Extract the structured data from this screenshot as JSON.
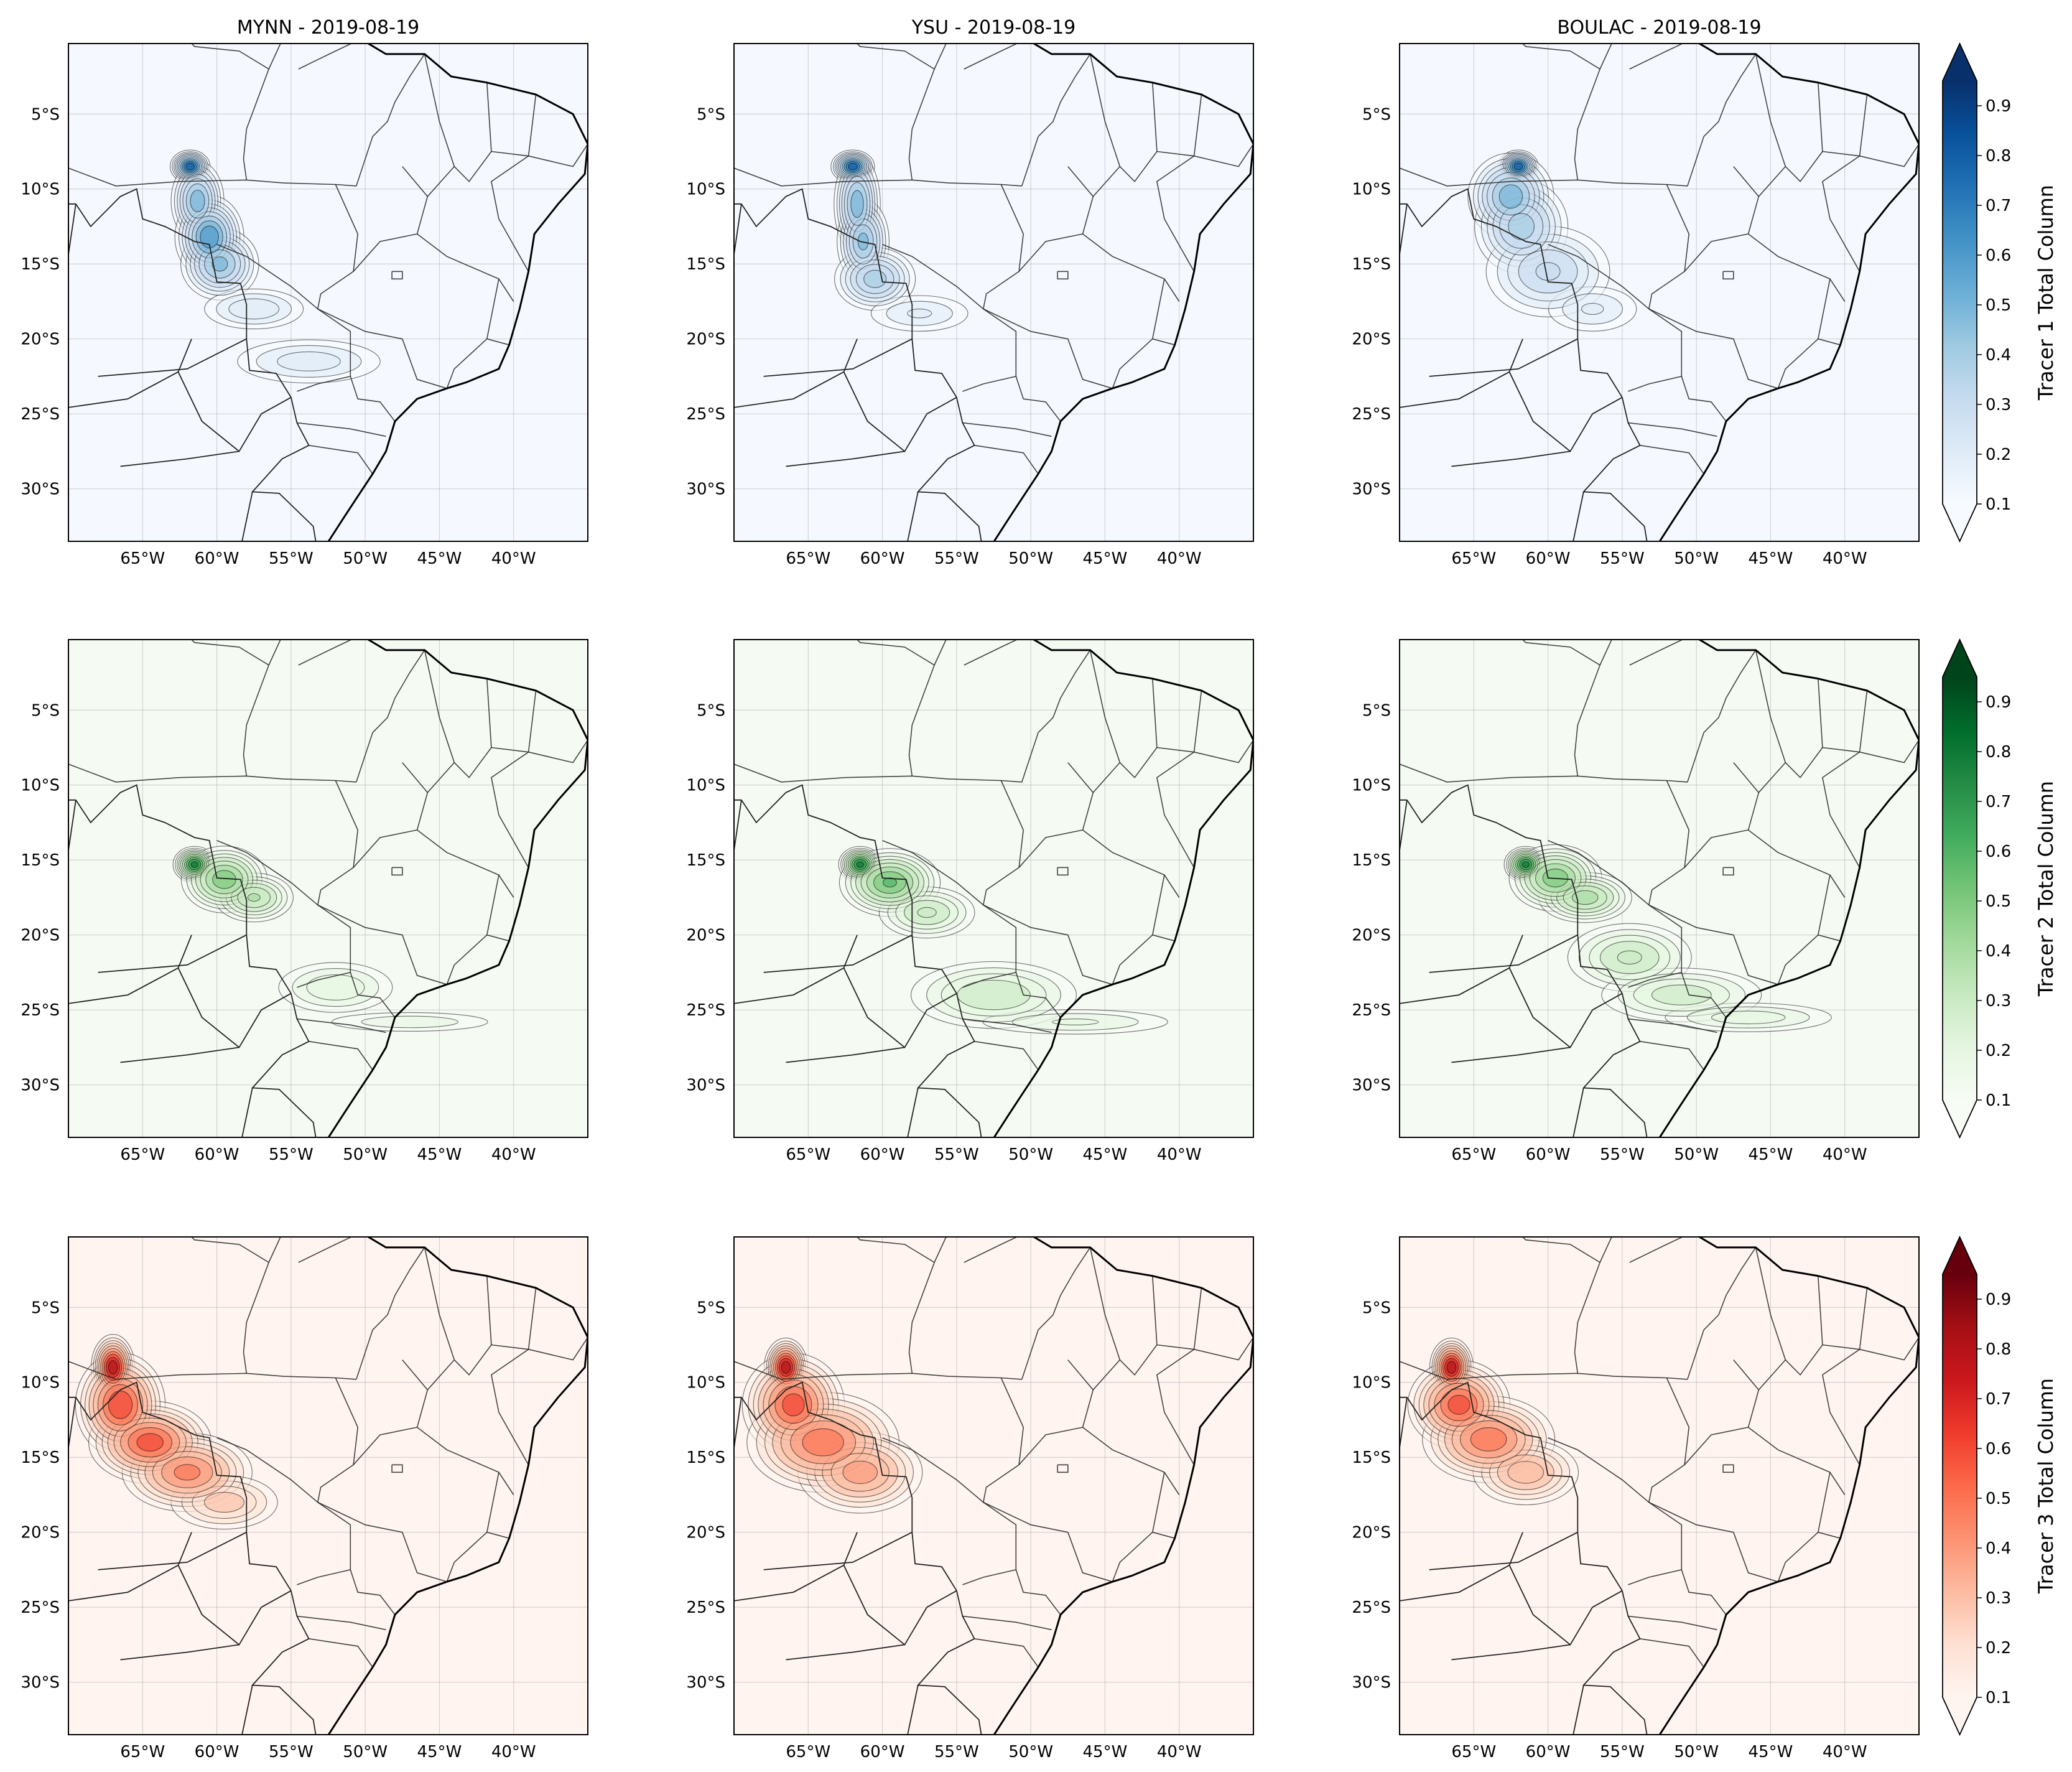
{
  "figure": {
    "columns": [
      "MYNN",
      "YSU",
      "BOULAC"
    ],
    "date": "2019-08-19",
    "title_separator": " - ",
    "panel_titles": [
      "MYNN - 2019-08-19",
      "YSU - 2019-08-19",
      "BOULAC - 2019-08-19"
    ]
  },
  "map_extent": {
    "lon": [
      -70,
      -35
    ],
    "lat": [
      -33.5,
      -0.3
    ]
  },
  "lon_ticks": [
    -65,
    -60,
    -55,
    -50,
    -45,
    -40
  ],
  "lon_tick_labels": [
    "65°W",
    "60°W",
    "55°W",
    "50°W",
    "45°W",
    "40°W"
  ],
  "lat_ticks": [
    -5,
    -10,
    -15,
    -20,
    -25,
    -30
  ],
  "lat_tick_labels": [
    "5°S",
    "10°S",
    "15°S",
    "20°S",
    "25°S",
    "30°S"
  ],
  "rows": [
    {
      "tracer": "Tracer 1",
      "colorbar_label": "Tracer 1 Total Column",
      "cmap": [
        "#f7fbff",
        "#deebf7",
        "#c6dbef",
        "#9ecae1",
        "#6baed6",
        "#4292c6",
        "#2171b5",
        "#08519c",
        "#08306b"
      ],
      "background": "#f5f9ff",
      "plumes": [
        {
          "model": "MYNN",
          "points": [
            [
              -61.8,
              -8.5,
              0.55,
              0.45,
              1.0
            ],
            [
              -61.3,
              -10.8,
              0.8,
              1.2,
              0.6
            ],
            [
              -60.5,
              -13.2,
              1.0,
              1.2,
              0.75
            ],
            [
              -59.8,
              -15.0,
              1.2,
              1.1,
              0.55
            ],
            [
              -57.5,
              -18.0,
              2.0,
              0.8,
              0.2
            ],
            [
              -53.8,
              -21.5,
              3.0,
              0.9,
              0.18
            ]
          ]
        },
        {
          "model": "YSU",
          "points": [
            [
              -62.0,
              -8.5,
              0.6,
              0.45,
              1.0
            ],
            [
              -61.7,
              -11.0,
              0.7,
              1.5,
              0.6
            ],
            [
              -61.3,
              -13.5,
              0.8,
              1.3,
              0.55
            ],
            [
              -60.5,
              -16.0,
              1.3,
              1.0,
              0.45
            ],
            [
              -57.5,
              -18.3,
              2.2,
              0.8,
              0.15
            ]
          ]
        },
        {
          "model": "BOULAC",
          "points": [
            [
              -62.0,
              -8.5,
              0.55,
              0.45,
              1.0
            ],
            [
              -62.5,
              -10.5,
              1.3,
              1.3,
              0.6
            ],
            [
              -61.8,
              -12.5,
              1.5,
              1.5,
              0.45
            ],
            [
              -60.0,
              -15.5,
              2.2,
              1.6,
              0.3
            ],
            [
              -57.0,
              -18.0,
              2.0,
              1.0,
              0.15
            ]
          ]
        }
      ]
    },
    {
      "tracer": "Tracer 2",
      "colorbar_label": "Tracer 2 Total Column",
      "cmap": [
        "#f7fcf5",
        "#e5f5e0",
        "#c7e9c0",
        "#a1d99b",
        "#74c476",
        "#41ab5d",
        "#238b45",
        "#006d2c",
        "#00441b"
      ],
      "background": "#f5fbf3",
      "plumes": [
        {
          "model": "MYNN",
          "points": [
            [
              -61.5,
              -15.3,
              0.6,
              0.5,
              0.95
            ],
            [
              -59.5,
              -16.3,
              1.3,
              1.0,
              0.6
            ],
            [
              -57.5,
              -17.5,
              1.3,
              0.8,
              0.4
            ],
            [
              -52.0,
              -23.5,
              2.3,
              1.0,
              0.2
            ],
            [
              -47.0,
              -25.8,
              3.8,
              0.45,
              0.13
            ]
          ]
        },
        {
          "model": "YSU",
          "points": [
            [
              -61.5,
              -15.3,
              0.6,
              0.5,
              0.95
            ],
            [
              -59.5,
              -16.5,
              1.5,
              1.0,
              0.65
            ],
            [
              -57.0,
              -18.5,
              1.7,
              0.9,
              0.3
            ],
            [
              -52.5,
              -24.0,
              3.0,
              1.2,
              0.28
            ],
            [
              -47.0,
              -25.8,
              4.2,
              0.55,
              0.15
            ]
          ]
        },
        {
          "model": "BOULAC",
          "points": [
            [
              -61.5,
              -15.3,
              0.6,
              0.5,
              0.95
            ],
            [
              -59.5,
              -16.2,
              1.4,
              1.0,
              0.6
            ],
            [
              -57.5,
              -17.5,
              1.5,
              0.8,
              0.45
            ],
            [
              -54.5,
              -21.5,
              2.2,
              1.2,
              0.3
            ],
            [
              -51.0,
              -24.0,
              3.0,
              1.0,
              0.25
            ],
            [
              -46.5,
              -25.5,
              3.5,
              0.6,
              0.18
            ]
          ]
        }
      ]
    },
    {
      "tracer": "Tracer 3",
      "colorbar_label": "Tracer 3 Total Column",
      "cmap": [
        "#fff5f0",
        "#fee0d2",
        "#fcbba1",
        "#fc9272",
        "#fb6a4a",
        "#ef3b2c",
        "#cb181d",
        "#a50f15",
        "#67000d"
      ],
      "background": "#fff4f0",
      "plumes": [
        {
          "model": "MYNN",
          "points": [
            [
              -67.0,
              -9.0,
              0.6,
              0.9,
              1.0
            ],
            [
              -66.5,
              -11.5,
              1.3,
              1.5,
              0.75
            ],
            [
              -64.5,
              -14.0,
              1.8,
              1.2,
              0.7
            ],
            [
              -62.0,
              -16.0,
              2.0,
              1.2,
              0.55
            ],
            [
              -59.5,
              -18.0,
              2.0,
              1.0,
              0.25
            ]
          ]
        },
        {
          "model": "YSU",
          "points": [
            [
              -66.5,
              -9.0,
              0.6,
              0.8,
              1.0
            ],
            [
              -66.0,
              -11.5,
              1.5,
              1.5,
              0.7
            ],
            [
              -64.0,
              -14.0,
              2.3,
              1.5,
              0.6
            ],
            [
              -61.5,
              -16.0,
              2.0,
              1.3,
              0.45
            ]
          ]
        },
        {
          "model": "BOULAC",
          "points": [
            [
              -66.5,
              -9.0,
              0.6,
              0.8,
              1.0
            ],
            [
              -66.0,
              -11.5,
              1.5,
              1.3,
              0.7
            ],
            [
              -64.0,
              -13.8,
              2.0,
              1.3,
              0.6
            ],
            [
              -61.5,
              -16.0,
              1.8,
              1.1,
              0.35
            ]
          ]
        }
      ]
    }
  ],
  "colorbar": {
    "ticks": [
      0.1,
      0.2,
      0.3,
      0.4,
      0.5,
      0.6,
      0.7,
      0.8,
      0.9
    ],
    "tick_labels": [
      "0.1",
      "0.2",
      "0.3",
      "0.4",
      "0.5",
      "0.6",
      "0.7",
      "0.8",
      "0.9"
    ],
    "range": [
      0.1,
      0.95
    ],
    "extend": "both"
  },
  "geography": {
    "coast": [
      [
        -51.0,
        4.3
      ],
      [
        -50.0,
        1.6
      ],
      [
        -50.3,
        0.0
      ],
      [
        -48.6,
        -1.0
      ],
      [
        -46.0,
        -1.0
      ],
      [
        -44.2,
        -2.5
      ],
      [
        -41.8,
        -2.9
      ],
      [
        -38.5,
        -3.7
      ],
      [
        -36.0,
        -5.0
      ],
      [
        -35.0,
        -7.0
      ],
      [
        -35.2,
        -9.0
      ],
      [
        -37.0,
        -11.0
      ],
      [
        -38.6,
        -13.0
      ],
      [
        -39.0,
        -15.5
      ],
      [
        -39.6,
        -18.0
      ],
      [
        -40.3,
        -20.4
      ],
      [
        -41.0,
        -22.0
      ],
      [
        -43.2,
        -22.9
      ],
      [
        -44.5,
        -23.3
      ],
      [
        -46.5,
        -24.0
      ],
      [
        -48.0,
        -25.5
      ],
      [
        -48.6,
        -27.5
      ],
      [
        -49.5,
        -29.0
      ],
      [
        -50.5,
        -30.5
      ],
      [
        -51.5,
        -32.0
      ],
      [
        -52.6,
        -33.7
      ]
    ],
    "borders": [
      [
        [
          -73.5,
          -7.3
        ],
        [
          -72.5,
          -9.4
        ],
        [
          -70.6,
          -9.5
        ],
        [
          -70.5,
          -11.0
        ],
        [
          -69.5,
          -11.0
        ]
      ],
      [
        [
          -69.5,
          -11.0
        ],
        [
          -68.5,
          -12.5
        ],
        [
          -66.5,
          -10.5
        ],
        [
          -65.4,
          -10.0
        ],
        [
          -65.0,
          -12.0
        ],
        [
          -63.5,
          -12.5
        ],
        [
          -61.5,
          -13.5
        ],
        [
          -60.5,
          -13.7
        ],
        [
          -60.0,
          -16.2
        ],
        [
          -58.4,
          -16.3
        ],
        [
          -58.0,
          -17.7
        ],
        [
          -58.0,
          -20.0
        ],
        [
          -57.8,
          -22.1
        ],
        [
          -56.0,
          -22.3
        ],
        [
          -55.0,
          -23.9
        ],
        [
          -54.6,
          -25.6
        ],
        [
          -53.8,
          -27.1
        ],
        [
          -55.6,
          -28.0
        ],
        [
          -57.6,
          -30.2
        ],
        [
          -55.8,
          -30.3
        ],
        [
          -53.5,
          -32.5
        ],
        [
          -53.3,
          -33.7
        ]
      ],
      [
        [
          -69.5,
          -11.0
        ],
        [
          -70.6,
          -18.4
        ]
      ],
      [
        [
          -58.0,
          -20.0
        ],
        [
          -62.0,
          -22.0
        ],
        [
          -68.0,
          -22.5
        ]
      ],
      [
        [
          -61.7,
          -20.0
        ],
        [
          -62.6,
          -22.2
        ]
      ],
      [
        [
          -55.0,
          -23.9
        ],
        [
          -57.0,
          -25.0
        ],
        [
          -58.5,
          -27.5
        ],
        [
          -61.0,
          -25.5
        ],
        [
          -62.6,
          -22.2
        ]
      ],
      [
        [
          -73.0,
          -25.0
        ],
        [
          -66.0,
          -24.0
        ],
        [
          -62.6,
          -22.2
        ]
      ],
      [
        [
          -58.5,
          -27.5
        ],
        [
          -62.0,
          -28.0
        ],
        [
          -66.5,
          -28.5
        ]
      ],
      [
        [
          -57.6,
          -30.2
        ],
        [
          -58.3,
          -33.5
        ]
      ],
      [
        [
          -60.0,
          4.5
        ],
        [
          -60.0,
          1.0
        ],
        [
          -58.5,
          1.5
        ],
        [
          -56.0,
          2.0
        ],
        [
          -54.5,
          2.3
        ],
        [
          -52.5,
          2.2
        ],
        [
          -51.6,
          4.0
        ]
      ]
    ],
    "states": [
      [
        [
          -73.5,
          -7.3
        ],
        [
          -66.8,
          -9.8
        ],
        [
          -62.5,
          -9.5
        ],
        [
          -58.0,
          -9.4
        ],
        [
          -55.5,
          -9.6
        ],
        [
          -52.0,
          -9.7
        ],
        [
          -50.6,
          -9.8
        ]
      ],
      [
        [
          -63.0,
          1.0
        ],
        [
          -61.5,
          -0.5
        ],
        [
          -58.5,
          -0.8
        ],
        [
          -56.5,
          -2.0
        ],
        [
          -58.0,
          -6.0
        ],
        [
          -58.2,
          -8.0
        ],
        [
          -58.0,
          -9.4
        ]
      ],
      [
        [
          -56.5,
          -2.0
        ],
        [
          -54.5,
          2.3
        ]
      ],
      [
        [
          -54.5,
          -2.0
        ],
        [
          -52.0,
          -0.8
        ],
        [
          -50.3,
          0.0
        ]
      ],
      [
        [
          -50.6,
          -9.8
        ],
        [
          -49.5,
          -6.5
        ],
        [
          -48.5,
          -5.5
        ],
        [
          -48.0,
          -4.2
        ],
        [
          -47.0,
          -2.5
        ],
        [
          -46.0,
          -1.0
        ]
      ],
      [
        [
          -52.0,
          -9.7
        ],
        [
          -50.5,
          -13.0
        ],
        [
          -50.8,
          -15.5
        ],
        [
          -53.0,
          -17.0
        ],
        [
          -53.2,
          -18.0
        ]
      ],
      [
        [
          -60.0,
          -13.7
        ],
        [
          -58.0,
          -14.5
        ],
        [
          -55.0,
          -16.5
        ],
        [
          -53.2,
          -18.0
        ],
        [
          -51.0,
          -19.5
        ],
        [
          -51.0,
          -22.5
        ],
        [
          -53.2,
          -23.0
        ],
        [
          -54.6,
          -23.5
        ]
      ],
      [
        [
          -53.2,
          -18.0
        ],
        [
          -50.0,
          -19.5
        ],
        [
          -47.5,
          -20.0
        ],
        [
          -46.5,
          -22.7
        ],
        [
          -44.5,
          -23.3
        ]
      ],
      [
        [
          -50.8,
          -15.5
        ],
        [
          -49.0,
          -13.5
        ],
        [
          -46.5,
          -13.0
        ],
        [
          -45.8,
          -10.5
        ],
        [
          -47.5,
          -8.5
        ]
      ],
      [
        [
          -48.2,
          -15.5
        ],
        [
          -47.5,
          -15.5
        ],
        [
          -47.5,
          -16.0
        ],
        [
          -48.2,
          -16.0
        ],
        [
          -48.2,
          -15.5
        ]
      ],
      [
        [
          -46.0,
          -1.0
        ],
        [
          -45.0,
          -5.5
        ],
        [
          -44.0,
          -8.5
        ],
        [
          -45.8,
          -10.5
        ]
      ],
      [
        [
          -41.8,
          -2.9
        ],
        [
          -41.5,
          -7.5
        ],
        [
          -43.0,
          -9.5
        ],
        [
          -44.0,
          -8.5
        ]
      ],
      [
        [
          -41.5,
          -7.5
        ],
        [
          -39.0,
          -7.8
        ],
        [
          -38.5,
          -3.7
        ]
      ],
      [
        [
          -39.0,
          -7.8
        ],
        [
          -36.0,
          -8.5
        ],
        [
          -35.0,
          -7.0
        ]
      ],
      [
        [
          -39.0,
          -7.8
        ],
        [
          -41.5,
          -9.5
        ],
        [
          -41.0,
          -12.0
        ],
        [
          -39.0,
          -15.5
        ]
      ],
      [
        [
          -46.5,
          -13.0
        ],
        [
          -44.5,
          -14.5
        ],
        [
          -41.0,
          -16.0
        ],
        [
          -40.0,
          -17.5
        ]
      ],
      [
        [
          -41.0,
          -16.0
        ],
        [
          -41.8,
          -20.0
        ],
        [
          -40.3,
          -20.4
        ]
      ],
      [
        [
          -41.8,
          -20.0
        ],
        [
          -44.0,
          -22.0
        ],
        [
          -44.5,
          -23.3
        ]
      ],
      [
        [
          -51.0,
          -22.5
        ],
        [
          -50.5,
          -24.0
        ],
        [
          -49.0,
          -24.2
        ],
        [
          -48.0,
          -25.5
        ]
      ],
      [
        [
          -54.6,
          -25.6
        ],
        [
          -51.0,
          -26.0
        ],
        [
          -48.6,
          -26.5
        ]
      ],
      [
        [
          -53.8,
          -27.1
        ],
        [
          -50.5,
          -27.6
        ],
        [
          -49.5,
          -29.0
        ]
      ]
    ]
  }
}
